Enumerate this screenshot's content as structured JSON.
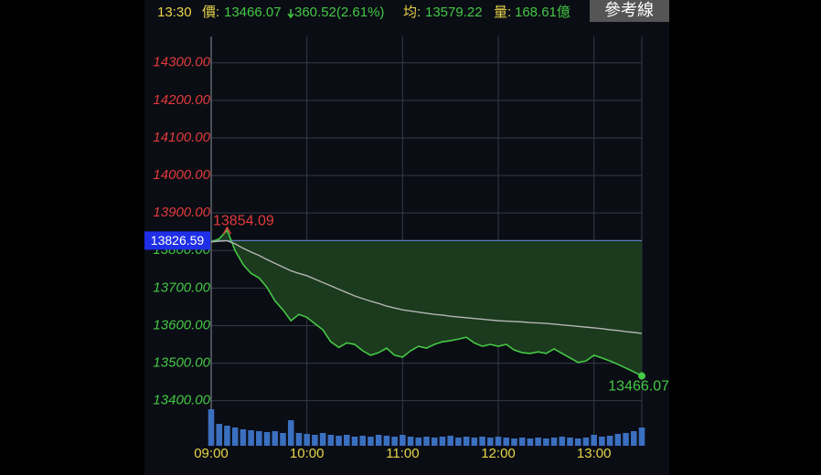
{
  "header": {
    "time": "13:30",
    "price_label": "價:",
    "price": "13466.07",
    "change": "360.52(2.61%)",
    "avg_label": "均:",
    "avg": "13579.22",
    "volume_label": "量:",
    "volume": "168.61億",
    "button": "參考線"
  },
  "chart_data": {
    "type": "line",
    "x": [
      "09:00",
      "09:05",
      "09:10",
      "09:15",
      "09:20",
      "09:25",
      "09:30",
      "09:35",
      "09:40",
      "09:45",
      "09:50",
      "09:55",
      "10:00",
      "10:05",
      "10:10",
      "10:15",
      "10:20",
      "10:25",
      "10:30",
      "10:35",
      "10:40",
      "10:45",
      "10:50",
      "10:55",
      "11:00",
      "11:05",
      "11:10",
      "11:15",
      "11:20",
      "11:25",
      "11:30",
      "11:35",
      "11:40",
      "11:45",
      "11:50",
      "11:55",
      "12:00",
      "12:05",
      "12:10",
      "12:15",
      "12:20",
      "12:25",
      "12:30",
      "12:35",
      "12:40",
      "12:45",
      "12:50",
      "12:55",
      "13:00",
      "13:05",
      "13:10",
      "13:15",
      "13:20",
      "13:25",
      "13:30"
    ],
    "xlim": [
      "09:00",
      "13:30"
    ],
    "xticks": [
      "09:00",
      "10:00",
      "11:00",
      "12:00",
      "13:00"
    ],
    "ylim": [
      13280,
      14370
    ],
    "yticks": [
      {
        "value": 13400,
        "label": "13400.00"
      },
      {
        "value": 13500,
        "label": "13500.00"
      },
      {
        "value": 13600,
        "label": "13600.00"
      },
      {
        "value": 13700,
        "label": "13700.00"
      },
      {
        "value": 13800,
        "label": "13800.00"
      },
      {
        "value": 13900,
        "label": "13900.00"
      },
      {
        "value": 14000,
        "label": "14000.00"
      },
      {
        "value": 14100,
        "label": "14100.00"
      },
      {
        "value": 14200,
        "label": "14200.00"
      },
      {
        "value": 14300,
        "label": "14300.00"
      }
    ],
    "reference": 13826.59,
    "up_color": "#e23b3b",
    "down_color": "#45c845",
    "reference_color": "#1f2fe8",
    "grid": true,
    "series": [
      {
        "color": "#45c845",
        "fill": "#1b3a1e",
        "values": [
          13823,
          13831,
          13854.09,
          13800,
          13763,
          13739,
          13727,
          13702,
          13666,
          13642,
          13613,
          13630,
          13622,
          13605,
          13589,
          13557,
          13542,
          13554,
          13550,
          13533,
          13521,
          13528,
          13540,
          13521,
          13516,
          13533,
          13545,
          13540,
          13550,
          13557,
          13560,
          13564,
          13569,
          13554,
          13545,
          13550,
          13545,
          13550,
          13535,
          13528,
          13526,
          13530,
          13526,
          13538,
          13526,
          13514,
          13502,
          13506,
          13521,
          13514,
          13506,
          13497,
          13487,
          13477,
          13466.07
        ]
      },
      {
        "color": "#b5b5b5",
        "values": [
          13823,
          13825,
          13826,
          13818,
          13806,
          13796,
          13787,
          13776,
          13766,
          13756,
          13746,
          13739,
          13733,
          13724,
          13715,
          13706,
          13697,
          13688,
          13679,
          13672,
          13665,
          13659,
          13652,
          13647,
          13642,
          13639,
          13636,
          13633,
          13630,
          13628,
          13625,
          13623,
          13621,
          13619,
          13617,
          13615,
          13613,
          13612,
          13611,
          13610,
          13608,
          13607,
          13606,
          13604,
          13602,
          13600,
          13598,
          13596,
          13594,
          13592,
          13589,
          13587,
          13584,
          13582,
          13579.22
        ]
      }
    ],
    "volume": {
      "color": "#3b6fc0",
      "vlim": [
        0,
        60
      ],
      "values": [
        40,
        24,
        22,
        20,
        18,
        17,
        16,
        15,
        16,
        14,
        28,
        14,
        13,
        12,
        14,
        12,
        11,
        12,
        10,
        11,
        10,
        12,
        11,
        10,
        12,
        10,
        9,
        10,
        9,
        10,
        11,
        9,
        10,
        9,
        10,
        9,
        10,
        9,
        8,
        9,
        8,
        9,
        8,
        9,
        10,
        9,
        8,
        9,
        12,
        10,
        11,
        13,
        14,
        16,
        20
      ]
    }
  }
}
